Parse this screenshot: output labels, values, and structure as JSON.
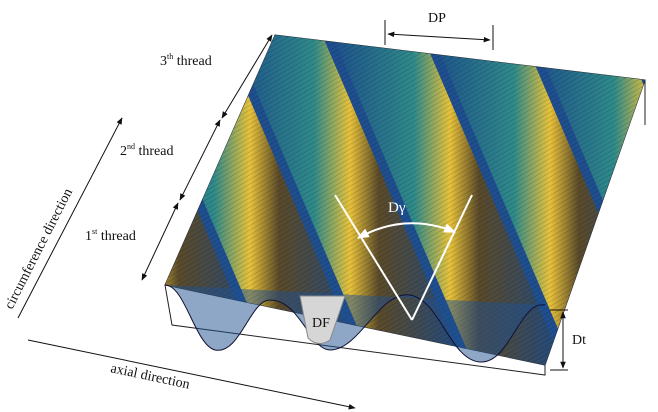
{
  "labels": {
    "pitch": "DP",
    "angle": "Dγ",
    "flank": "DF",
    "depth": "Dt",
    "threads": [
      {
        "number": "3",
        "suffix": "th",
        "word": " thread"
      },
      {
        "number": "2",
        "suffix": "nd",
        "word": " thread"
      },
      {
        "number": "1",
        "suffix": "st",
        "word": " thread"
      }
    ],
    "circumference": "circumference direction",
    "axial": "axial direction"
  }
}
